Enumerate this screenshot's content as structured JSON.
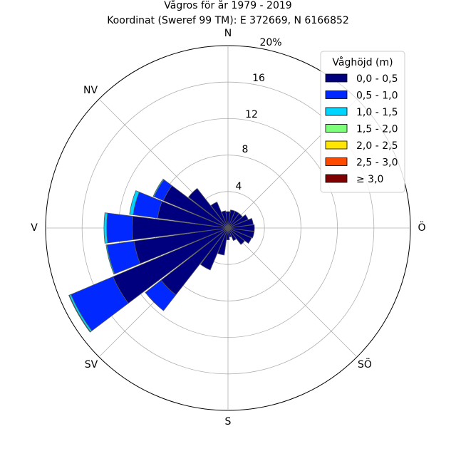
{
  "chart_data": {
    "type": "windrose",
    "title": "Vågros för år 1979 - 2019",
    "subtitle": "Koordinat (Sweref 99 TM): E 372669, N 6166852",
    "directions": [
      "N",
      "Ö",
      "S",
      "V",
      "NV",
      "SÖ",
      "SV"
    ],
    "direction_labels": {
      "N": "N",
      "NE": "",
      "E": "Ö",
      "SE": "SÖ",
      "S": "S",
      "SW": "SV",
      "W": "V",
      "NW": "NV"
    },
    "radial_ticks": [
      "4",
      "8",
      "12",
      "16",
      "20%"
    ],
    "radial_tick_values": [
      4,
      8,
      12,
      16,
      20
    ],
    "rmax": 20,
    "unit": "%",
    "sector_count": 24,
    "sector_angles_deg": [
      0,
      15,
      30,
      45,
      60,
      75,
      90,
      105,
      120,
      135,
      150,
      165,
      180,
      195,
      210,
      225,
      240,
      255,
      270,
      285,
      300,
      315,
      330,
      345
    ],
    "legend": {
      "title": "Våghöjd (m)",
      "placement": "top-right"
    },
    "series": [
      {
        "name": "0,0 - 0,5",
        "color": "#00007f",
        "values": [
          1.8,
          2.0,
          2.0,
          2.0,
          2.4,
          2.8,
          2.9,
          2.9,
          2.8,
          2.3,
          1.5,
          1.0,
          1.3,
          3.0,
          5.0,
          9.3,
          13.7,
          10.4,
          10.5,
          7.8,
          7.7,
          5.5,
          3.1,
          1.9
        ]
      },
      {
        "name": "0,5 - 1,0",
        "color": "#0028ff",
        "values": [
          0,
          0,
          0,
          0,
          0,
          0,
          0,
          0,
          0,
          0,
          0,
          0,
          0,
          0,
          0,
          2.2,
          5.0,
          3.0,
          2.8,
          2.7,
          1.1,
          0,
          0,
          0
        ]
      },
      {
        "name": "1,0 - 1,5",
        "color": "#00d5ff",
        "values": [
          0,
          0,
          0,
          0,
          0,
          0,
          0,
          0,
          0,
          0,
          0,
          0,
          0,
          0,
          0,
          0,
          0.2,
          0.1,
          0.3,
          0.4,
          0.1,
          0,
          0,
          0
        ]
      },
      {
        "name": "1,5 - 2,0",
        "color": "#7dff7a",
        "values": [
          0,
          0,
          0,
          0,
          0,
          0,
          0,
          0,
          0,
          0,
          0,
          0,
          0,
          0,
          0,
          0,
          0.05,
          0,
          0,
          0,
          0,
          0,
          0,
          0
        ]
      },
      {
        "name": "2,0 - 2,5",
        "color": "#ffe600",
        "values": [
          0,
          0,
          0,
          0,
          0,
          0,
          0,
          0,
          0,
          0,
          0,
          0,
          0,
          0,
          0,
          0,
          0,
          0,
          0,
          0,
          0,
          0,
          0,
          0
        ]
      },
      {
        "name": "2,5 - 3,0",
        "color": "#ff4a00",
        "values": [
          0,
          0,
          0,
          0,
          0,
          0,
          0,
          0,
          0,
          0,
          0,
          0,
          0,
          0,
          0,
          0,
          0,
          0,
          0,
          0,
          0,
          0,
          0,
          0
        ]
      },
      {
        "name": "≥ 3,0",
        "color": "#7f0000",
        "values": [
          0,
          0,
          0,
          0,
          0,
          0,
          0,
          0,
          0,
          0,
          0,
          0,
          0,
          0,
          0,
          0,
          0,
          0,
          0,
          0,
          0,
          0,
          0,
          0
        ]
      }
    ],
    "grid": true
  }
}
